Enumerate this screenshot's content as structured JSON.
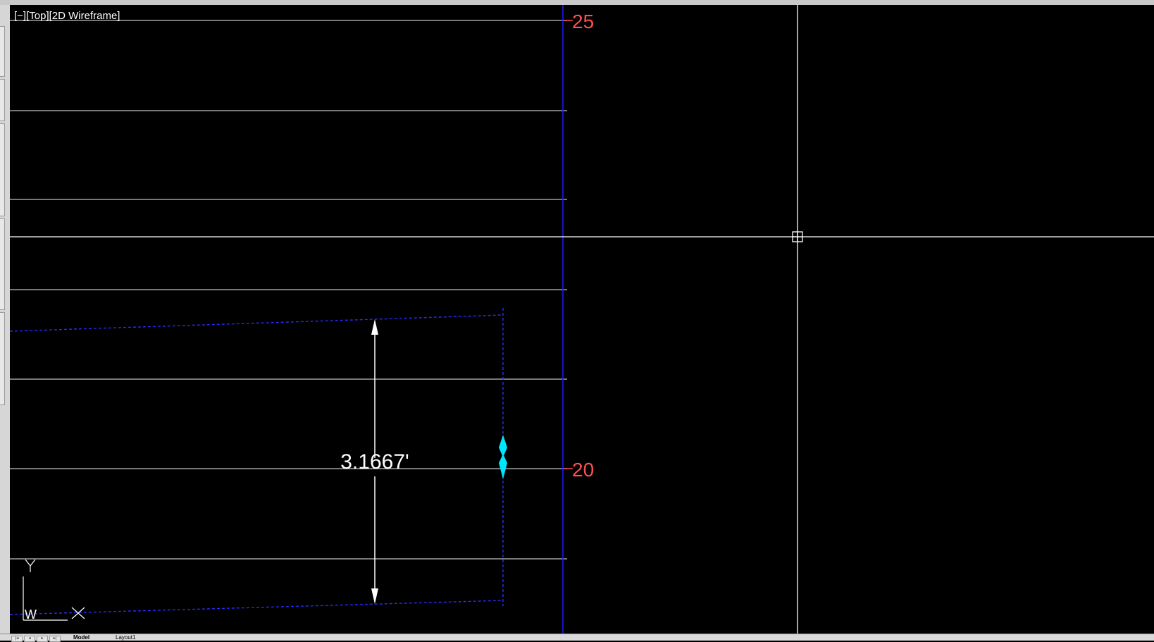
{
  "viewport": {
    "label": "[−][Top][2D Wireframe]"
  },
  "ruler": {
    "top_value": "25",
    "mid_value": "20",
    "label_color": "#ff5050"
  },
  "dimension": {
    "text": "3.1667'",
    "line_color": "#ffffff"
  },
  "ucs": {
    "y_label": "Y",
    "x_label": "X",
    "w_label": "W"
  },
  "layout_tabs": [
    "Model",
    "Layout1"
  ],
  "colors": {
    "background": "#000000",
    "grid_line": "#bfbfbf",
    "blue_line": "#1a1aff",
    "dashed_line": "#2a2aff",
    "grip": "#00e5ff",
    "crosshair": "#ffffff"
  }
}
